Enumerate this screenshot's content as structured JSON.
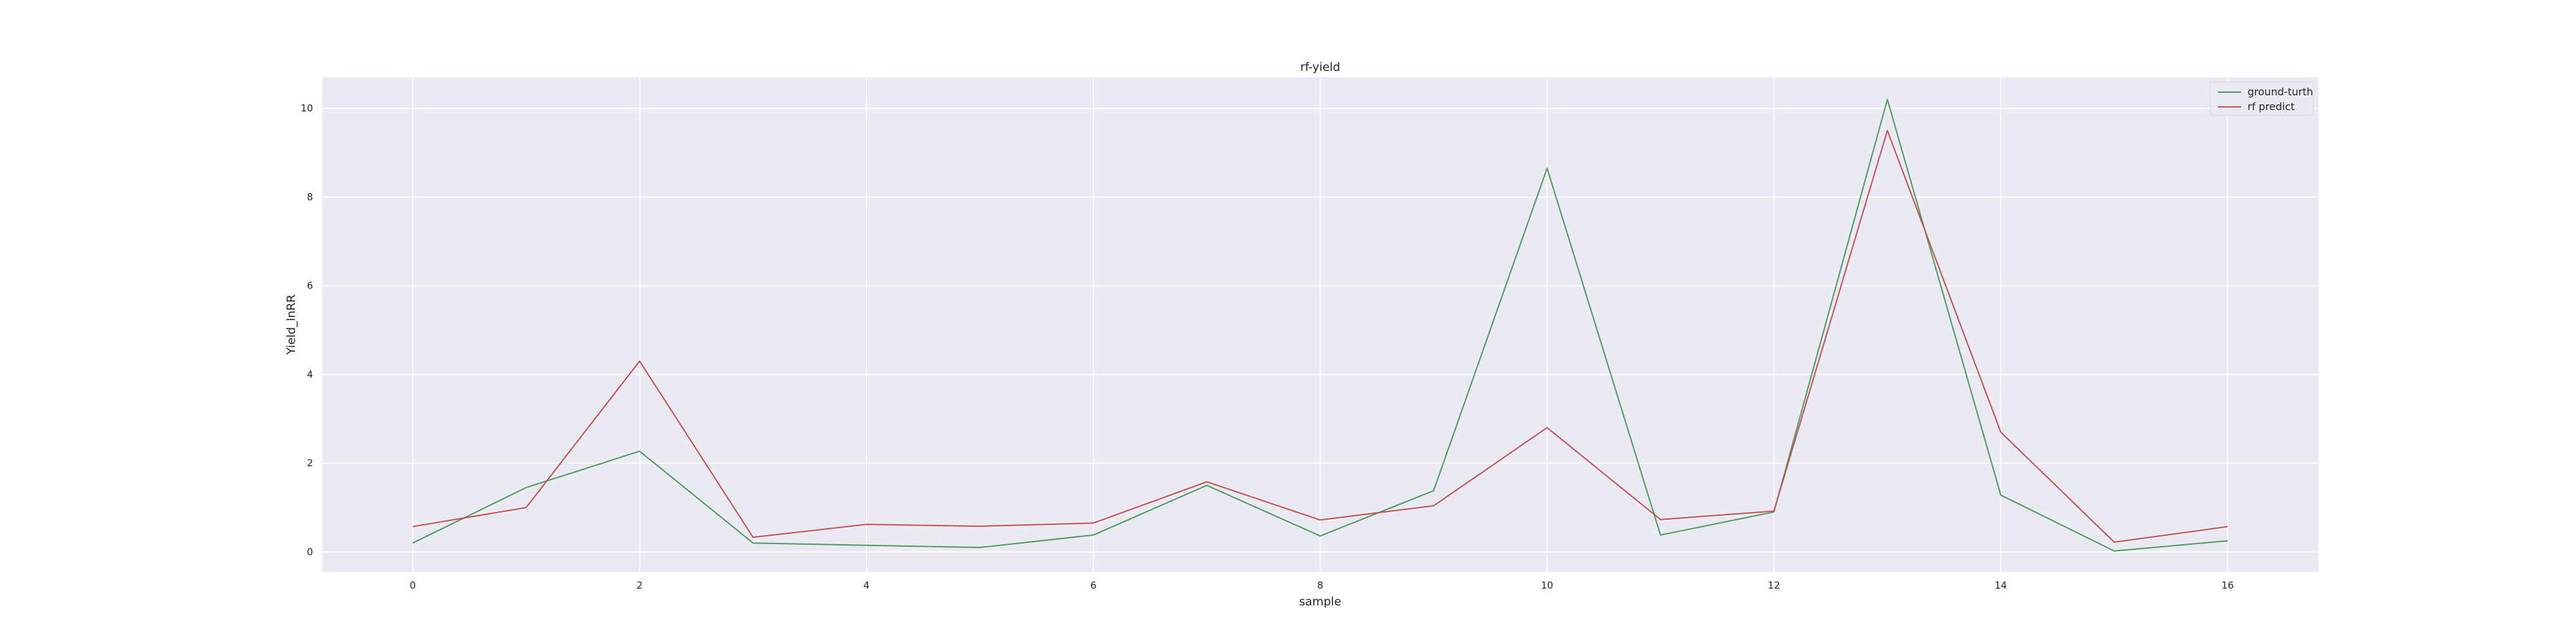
{
  "chart_data": {
    "type": "line",
    "title": "rf-yield",
    "xlabel": "sample",
    "ylabel": "Yield_lnRR",
    "x": [
      0,
      1,
      2,
      3,
      4,
      5,
      6,
      7,
      8,
      9,
      10,
      11,
      12,
      13,
      14,
      15,
      16
    ],
    "xlim": [
      -0.8,
      16.8
    ],
    "ylim": [
      -0.45,
      10.7
    ],
    "xticks": [
      0,
      2,
      4,
      6,
      8,
      10,
      12,
      14,
      16
    ],
    "yticks": [
      0,
      2,
      4,
      6,
      8,
      10
    ],
    "grid": true,
    "legend_position": "top-right",
    "background_color": "#eaeaf2",
    "grid_color": "#ffffff",
    "series": [
      {
        "name": "ground-turth",
        "color": "#4c9a5e",
        "values": [
          0.2,
          1.45,
          2.27,
          0.2,
          0.15,
          0.1,
          0.38,
          1.5,
          0.36,
          1.38,
          8.65,
          0.38,
          0.9,
          10.2,
          1.28,
          0.02,
          0.25
        ]
      },
      {
        "name": "rf predict",
        "color": "#c44e52",
        "values": [
          0.57,
          1.0,
          4.3,
          0.33,
          0.62,
          0.58,
          0.65,
          1.58,
          0.72,
          1.04,
          2.8,
          0.73,
          0.92,
          9.5,
          2.7,
          0.22,
          0.57
        ]
      }
    ]
  }
}
